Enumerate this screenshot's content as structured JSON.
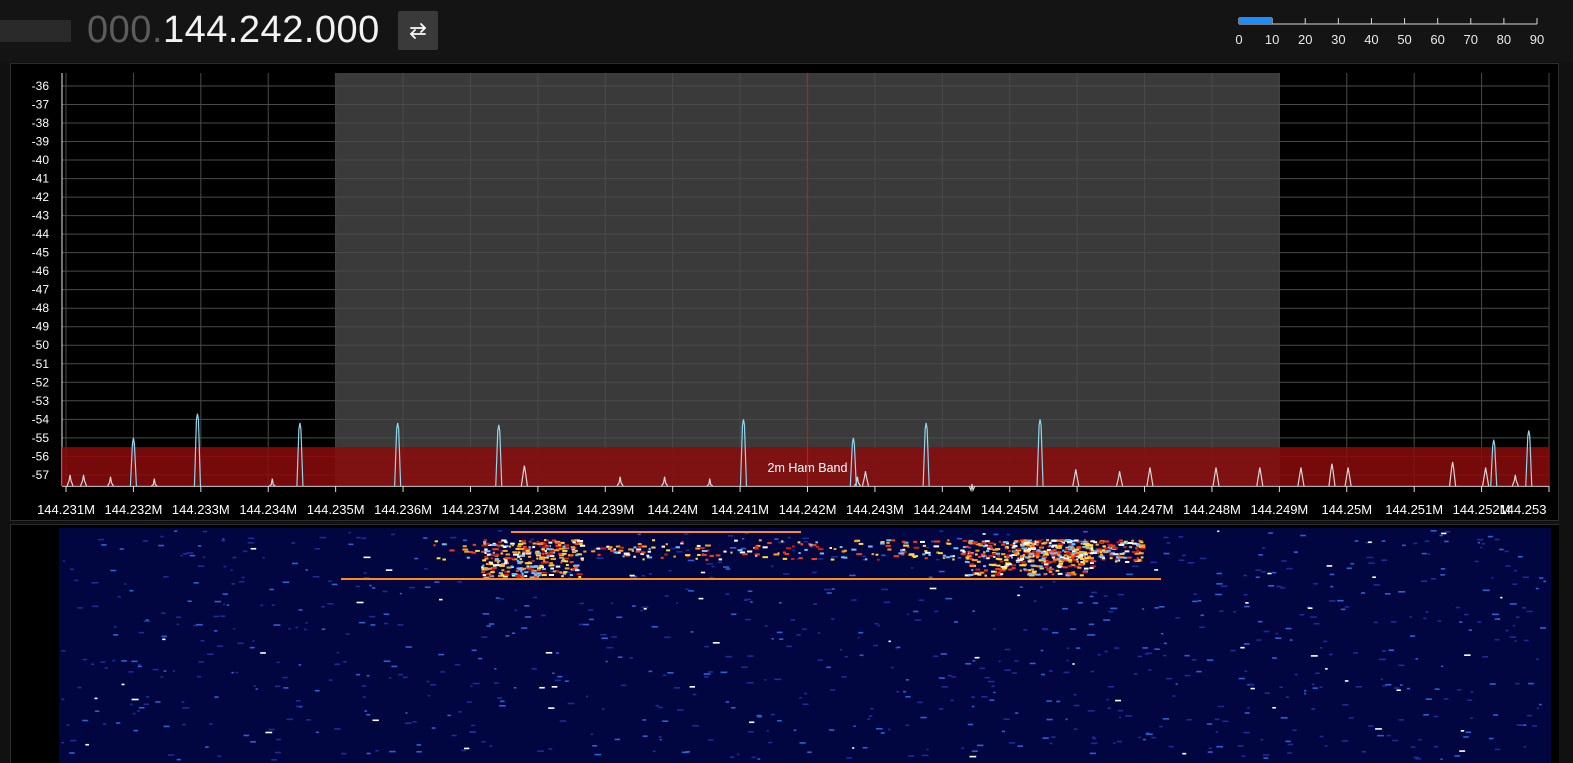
{
  "header": {
    "frequency_dim": "000.",
    "frequency_bright": "144.242.000",
    "swap_icon": "swap-arrows-icon"
  },
  "snr_scale": {
    "labels": [
      "0",
      "10",
      "20",
      "30",
      "40",
      "50",
      "60",
      "70",
      "80",
      "90"
    ],
    "level": 10,
    "max": 90,
    "bar_color": "#1e8cff"
  },
  "spectrum": {
    "y_labels": [
      "-36",
      "-37",
      "-38",
      "-39",
      "-40",
      "-41",
      "-42",
      "-43",
      "-44",
      "-45",
      "-46",
      "-47",
      "-48",
      "-49",
      "-50",
      "-51",
      "-52",
      "-53",
      "-54",
      "-55",
      "-56",
      "-57"
    ],
    "x_labels": [
      "144.231M",
      "144.232M",
      "144.233M",
      "144.234M",
      "144.235M",
      "144.236M",
      "144.237M",
      "144.238M",
      "144.239M",
      "144.24M",
      "144.241M",
      "144.242M",
      "144.243M",
      "144.244M",
      "144.245M",
      "144.246M",
      "144.247M",
      "144.248M",
      "144.249M",
      "144.25M",
      "144.251M",
      "144.252M",
      "144.253"
    ],
    "center_frequency_mhz": 144.242,
    "passband_mhz": [
      144.235,
      144.249
    ],
    "band_overlay_label": "2m Ham Band",
    "colors": {
      "passband": "#3a3a3a",
      "band_overlay": "#8b0b0b",
      "center_line": "#e01010",
      "peak_line": "#8fd8f0"
    },
    "peaks": [
      {
        "freq": 144.23106,
        "db": -57.0
      },
      {
        "freq": 144.23126,
        "db": -57.0
      },
      {
        "freq": 144.23166,
        "db": -57.1
      },
      {
        "freq": 144.232,
        "db": -55.0
      },
      {
        "freq": 144.23231,
        "db": -57.2
      },
      {
        "freq": 144.23295,
        "db": -53.7
      },
      {
        "freq": 144.23406,
        "db": -57.2
      },
      {
        "freq": 144.23447,
        "db": -54.2
      },
      {
        "freq": 144.23592,
        "db": -54.2
      },
      {
        "freq": 144.23742,
        "db": -54.3
      },
      {
        "freq": 144.2378,
        "db": -56.5
      },
      {
        "freq": 144.23922,
        "db": -57.1
      },
      {
        "freq": 144.23988,
        "db": -57.1
      },
      {
        "freq": 144.24055,
        "db": -57.2
      },
      {
        "freq": 144.24105,
        "db": -54.0
      },
      {
        "freq": 144.24274,
        "db": -57.1
      },
      {
        "freq": 144.24268,
        "db": -55.0
      },
      {
        "freq": 144.24286,
        "db": -56.8
      },
      {
        "freq": 144.24376,
        "db": -54.2
      },
      {
        "freq": 144.24444,
        "db": -57.5
      },
      {
        "freq": 144.24545,
        "db": -54.0
      },
      {
        "freq": 144.24598,
        "db": -56.7
      },
      {
        "freq": 144.24663,
        "db": -56.8
      },
      {
        "freq": 144.24708,
        "db": -56.6
      },
      {
        "freq": 144.24806,
        "db": -56.6
      },
      {
        "freq": 144.24871,
        "db": -56.6
      },
      {
        "freq": 144.24932,
        "db": -56.6
      },
      {
        "freq": 144.24978,
        "db": -56.4
      },
      {
        "freq": 144.25002,
        "db": -56.6
      },
      {
        "freq": 144.25157,
        "db": -56.3
      },
      {
        "freq": 144.25206,
        "db": -56.6
      },
      {
        "freq": 144.25218,
        "db": -55.1
      },
      {
        "freq": 144.2527,
        "db": -54.6
      },
      {
        "freq": 144.2525,
        "db": -57.0
      }
    ]
  },
  "waterfall": {
    "background_color": "#020640"
  }
}
